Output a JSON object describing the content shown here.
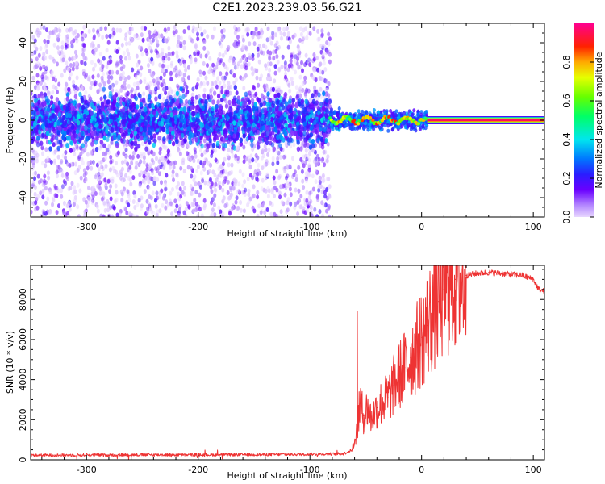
{
  "figure": {
    "title": "C2E1.2023.239.03.56.G21"
  },
  "chart_data": [
    {
      "type": "heatmap",
      "xlabel": "Height of straight line (km)",
      "ylabel": "Frequency (Hz)",
      "xlim": [
        -350,
        110
      ],
      "ylim": [
        -50,
        50
      ],
      "xticks": [
        -300,
        -200,
        -100,
        0,
        100
      ],
      "xtick_labels": [
        "-300",
        "-200",
        "-100",
        "0",
        "100"
      ],
      "yticks": [
        -40,
        -20,
        0,
        20,
        40
      ],
      "ytick_labels": [
        "-40",
        "-20",
        "0",
        "20",
        "40"
      ],
      "colorbar": {
        "label": "Normalized spectral amplitude",
        "range": [
          0,
          1
        ],
        "ticks": [
          0.0,
          0.2,
          0.4,
          0.6,
          0.8
        ],
        "tick_labels": [
          "0.0",
          "0.2",
          "0.4",
          "0.6",
          "0.8"
        ]
      },
      "features": {
        "noise_region_x": [
          -350,
          -82
        ],
        "noise_freq_extent": [
          -50,
          48
        ],
        "dense_band_freq": [
          -10,
          10
        ],
        "transition_x": [
          -82,
          5
        ],
        "tone_start_x": 5,
        "tone_freq": 0
      },
      "grid": false
    },
    {
      "type": "line",
      "xlabel": "Height of straight line (km)",
      "ylabel": "SNR (10 * v/v)",
      "xlim": [
        -350,
        110
      ],
      "ylim": [
        0,
        9700
      ],
      "xticks": [
        -300,
        -200,
        -100,
        0,
        100
      ],
      "xtick_labels": [
        "-300",
        "-200",
        "-100",
        "0",
        "100"
      ],
      "yticks": [
        0,
        2000,
        4000,
        6000,
        8000
      ],
      "ytick_labels": [
        "0",
        "2000",
        "4000",
        "6000",
        "8000"
      ],
      "color": "#ee3333",
      "series": [
        {
          "x": [
            -350,
            -300,
            -250,
            -200,
            -150,
            -100,
            -70,
            -62,
            -58,
            -55,
            -52,
            -48,
            -45,
            -40,
            -35,
            -30,
            -25,
            -20,
            -15,
            -10,
            -5,
            0,
            5,
            10,
            15,
            20,
            30,
            40,
            50,
            60,
            70,
            80,
            90,
            100,
            105,
            110
          ],
          "values": [
            230,
            240,
            250,
            250,
            260,
            280,
            300,
            500,
            1500,
            2800,
            2200,
            2600,
            2000,
            2600,
            2900,
            3100,
            3700,
            4200,
            4600,
            5100,
            5500,
            6100,
            6700,
            7300,
            7900,
            8500,
            9000,
            9200,
            9300,
            9350,
            9300,
            9250,
            9200,
            9000,
            8500,
            8400
          ]
        }
      ],
      "grid": false
    }
  ]
}
